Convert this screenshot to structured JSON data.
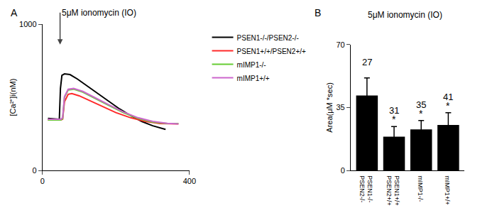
{
  "chart_data": [
    {
      "type": "line",
      "panel_label": "A",
      "annotation": "5μM ionomycin (IO)",
      "annotation_x": 48,
      "y_label": "[Ca²⁺]i(nM)",
      "xlim": [
        0,
        400
      ],
      "xticks": [
        0,
        400
      ],
      "ylim": [
        0,
        1000
      ],
      "yticks": [
        0,
        1000
      ],
      "grid": false,
      "legend": "upper right",
      "series": [
        {
          "name": "PSEN1-/-/PSEN2-/-",
          "color": "#000000",
          "x": [
            15,
            46,
            49,
            53,
            60,
            75,
            95,
            120,
            150,
            180,
            210,
            240,
            270,
            300,
            335
          ],
          "values": [
            355,
            350,
            560,
            650,
            660,
            655,
            625,
            580,
            525,
            470,
            420,
            375,
            335,
            305,
            280
          ]
        },
        {
          "name": "PSEN1+/+/PSEN2+/+",
          "color": "#ff2a2a",
          "x": [
            15,
            50,
            55,
            60,
            70,
            80,
            100,
            130,
            160,
            200,
            240,
            280,
            320,
            370
          ],
          "values": [
            345,
            345,
            350,
            470,
            520,
            525,
            510,
            475,
            440,
            395,
            360,
            335,
            320,
            318
          ]
        },
        {
          "name": "mIMP1-/-",
          "color": "#66cc33",
          "x": [
            15,
            50,
            55,
            60,
            70,
            85,
            110,
            140,
            180,
            220,
            260,
            300,
            340,
            370
          ],
          "values": [
            345,
            345,
            355,
            500,
            550,
            555,
            535,
            495,
            445,
            395,
            355,
            330,
            320,
            320
          ]
        },
        {
          "name": "mIMP1+/+",
          "color": "#cc66cc",
          "x": [
            15,
            50,
            55,
            60,
            70,
            85,
            110,
            140,
            180,
            220,
            260,
            300,
            340,
            370
          ],
          "values": [
            350,
            350,
            360,
            505,
            555,
            560,
            540,
            500,
            450,
            400,
            360,
            335,
            322,
            318
          ]
        }
      ]
    },
    {
      "type": "bar",
      "panel_label": "B",
      "title": "5μM ionomycin (IO)",
      "y_label": "Area(μM *sec)",
      "categories": [
        "PSEN1-/-\nPSEN2-/-",
        "PSEN1+/+\nPSEN2+/+",
        "mIMP1-/-",
        "mIMP1+/+"
      ],
      "values": [
        41.7,
        18.8,
        22.8,
        25.3
      ],
      "errors": [
        9.8,
        5.6,
        5.0,
        6.8
      ],
      "n_labels": [
        27,
        31,
        35,
        41
      ],
      "significance": [
        null,
        "*",
        "*",
        "*"
      ],
      "color": "#000000",
      "ylim": [
        0,
        70
      ],
      "yticks": [
        0,
        35,
        70
      ],
      "grid": false
    }
  ]
}
